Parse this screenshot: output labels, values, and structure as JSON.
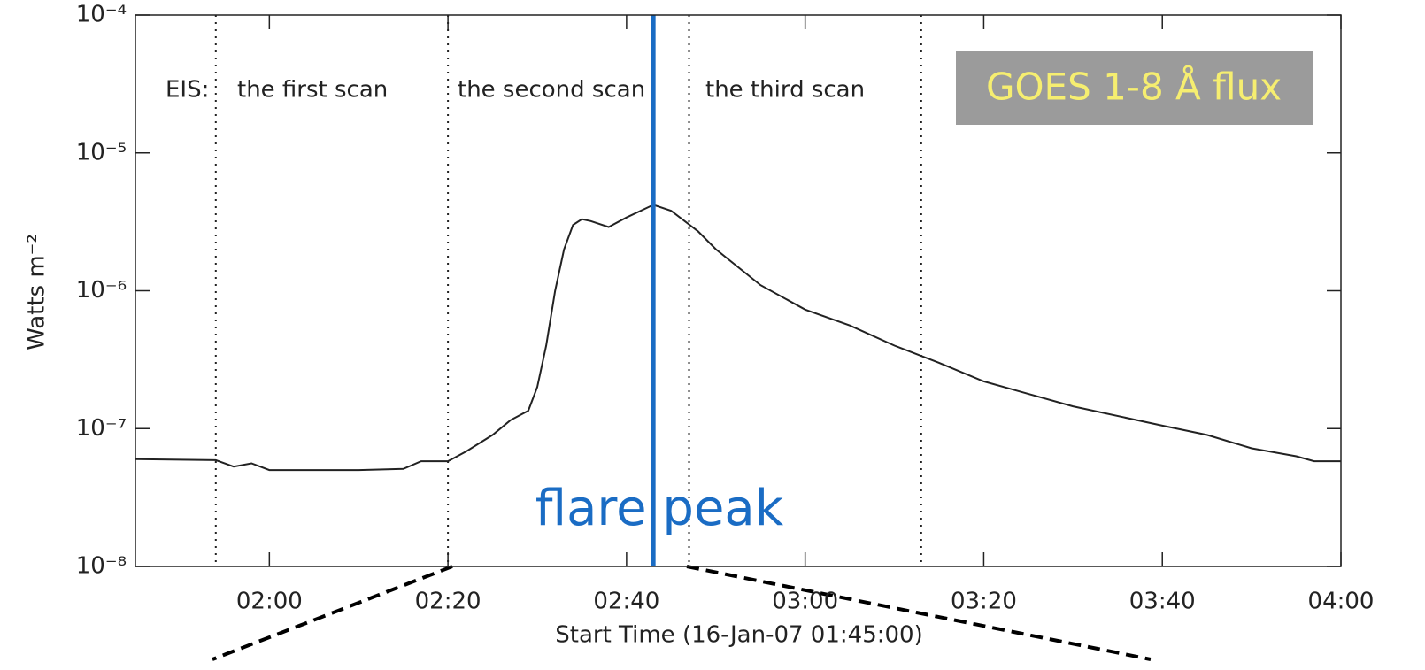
{
  "chart_data": {
    "type": "line",
    "xlabel": "Start Time (16-Jan-07 01:45:00)",
    "ylabel": "Watts m⁻²",
    "log_y": true,
    "xlim": [
      "01:45",
      "04:00"
    ],
    "xticks": [
      "02:00",
      "02:20",
      "02:40",
      "03:00",
      "03:20",
      "03:40",
      "04:00"
    ],
    "ylim": [
      1e-08,
      0.0001
    ],
    "yticks": [
      {
        "value": 1e-08,
        "label": "10⁻⁸"
      },
      {
        "value": 1e-07,
        "label": "10⁻⁷"
      },
      {
        "value": 1e-06,
        "label": "10⁻⁶"
      },
      {
        "value": 1e-05,
        "label": "10⁻⁵"
      },
      {
        "value": 0.0001,
        "label": "10⁻⁴"
      }
    ],
    "x": [
      "01:45",
      "01:54",
      "01:56",
      "01:58",
      "02:00",
      "02:10",
      "02:15",
      "02:17",
      "02:20",
      "02:22",
      "02:25",
      "02:27",
      "02:29",
      "02:30",
      "02:31",
      "02:32",
      "02:33",
      "02:34",
      "02:35",
      "02:36",
      "02:38",
      "02:40",
      "02:43",
      "02:45",
      "02:48",
      "02:50",
      "02:55",
      "03:00",
      "03:05",
      "03:10",
      "03:15",
      "03:20",
      "03:30",
      "03:40",
      "03:45",
      "03:50",
      "03:55",
      "03:57",
      "04:00"
    ],
    "series": [
      {
        "name": "GOES 1-8 Å flux",
        "color": "#222222",
        "values": [
          6e-08,
          5.9e-08,
          5.3e-08,
          5.6e-08,
          5e-08,
          5e-08,
          5.1e-08,
          5.8e-08,
          5.8e-08,
          6.8e-08,
          9e-08,
          1.15e-07,
          1.35e-07,
          2e-07,
          4e-07,
          1e-06,
          2e-06,
          3e-06,
          3.3e-06,
          3.2e-06,
          2.9e-06,
          3.4e-06,
          4.2e-06,
          3.8e-06,
          2.7e-06,
          2e-06,
          1.1e-06,
          7.3e-07,
          5.6e-07,
          4e-07,
          3e-07,
          2.2e-07,
          1.45e-07,
          1.05e-07,
          9e-08,
          7.2e-08,
          6.3e-08,
          5.8e-08,
          5.8e-08
        ]
      }
    ],
    "scan_lines": [
      "01:54",
      "02:20",
      "02:47",
      "03:13"
    ],
    "scan_labels": [
      "EIS:",
      "the first scan",
      "the second scan",
      "the third scan"
    ],
    "peak": {
      "x": "02:43",
      "label": "flare peak",
      "color": "#1a6cc4"
    },
    "label_box_color": "#9b9b9b",
    "label_text_color": "#f6ee70"
  }
}
